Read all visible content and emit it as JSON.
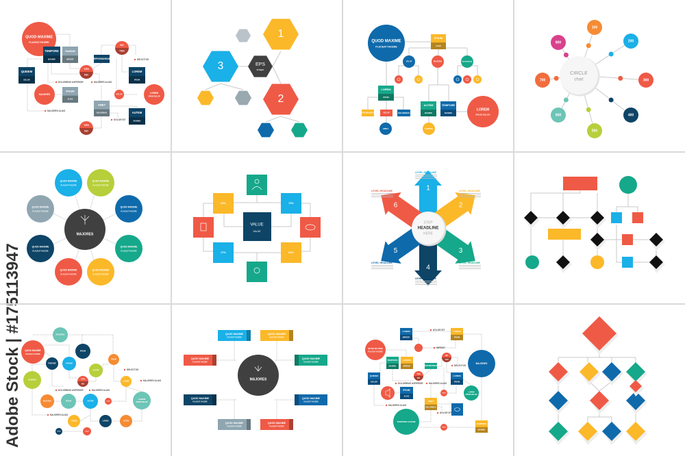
{
  "watermark": "Adobe Stock | #175113947",
  "colors": {
    "red": "#ef5a46",
    "navy": "#0e4466",
    "slate": "#8fa6b1",
    "blue": "#0f6aab",
    "cyan": "#1ab0e8",
    "yellow": "#fbb829",
    "green": "#16a88a",
    "lime": "#b7cf3a",
    "dark": "#404040",
    "orange": "#f68b33",
    "teal": "#6cc5b6",
    "magenta": "#d9418d",
    "divider": "#d9d9d9",
    "connector": "#c9c9c9"
  },
  "labels": {
    "quod": "QUOD MAXIME",
    "placeat": "PLACEAT FACERE",
    "tempore": "TEMPORE",
    "maximo": "MAXIMO",
    "harum": "HARUM",
    "impedit": "IMPEDIT",
    "quidem": "QUIDEM",
    "dolor": "DOLOR",
    "majores": "MAJORES",
    "ipsum": "IPSUM",
    "alias": "ALIAS",
    "yes": "YES",
    "no": "NO",
    "repudiandae": "REPUDIANDAE",
    "delectus": "DELECTUS",
    "lorem": "LOREM",
    "volup": "VOLUP",
    "ipsum_dolor": "IPSUM DOLOR",
    "amet": "AMET",
    "doloribus": "DOLORIBUS",
    "autem": "AUTEM",
    "doloribus_asperior": "DOLORIBUS ASPERIOR",
    "majores_alias": "MAJORES ALIAS",
    "dolor_sit": "DOLOR SIT",
    "tempore_harum": "TEMPORE HARUM"
  },
  "hexagons": {
    "one": "1",
    "two": "2",
    "three": "3",
    "center_title": "EPS",
    "center_sub": "shape"
  },
  "circle_chart": {
    "center_title": "CIRCLE",
    "center_sub": "chart",
    "values": [
      "100",
      "200",
      "300",
      "400",
      "500",
      "600",
      "700",
      "800"
    ]
  },
  "value_chart": {
    "center_title": "VALUE",
    "center_sub": "VALUE",
    "percents": [
      "23%",
      "73%",
      "17%",
      "84%"
    ]
  },
  "steps": {
    "center": [
      "STEP",
      "HEADLINE",
      "HERE"
    ],
    "numbers": [
      "1",
      "2",
      "3",
      "4",
      "5",
      "6"
    ],
    "headline": "LEVEL HEADLINE"
  }
}
